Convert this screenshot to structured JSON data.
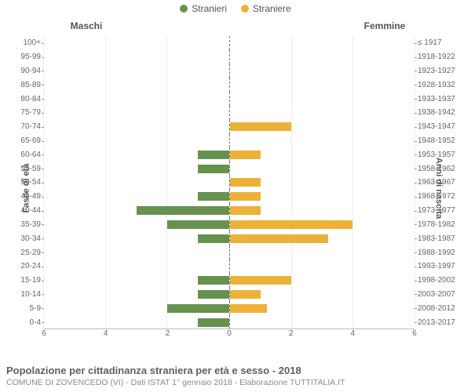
{
  "legend": {
    "male": {
      "label": "Stranieri",
      "color": "#67924e"
    },
    "female": {
      "label": "Straniere",
      "color": "#edb137"
    }
  },
  "headers": {
    "male": "Maschi",
    "female": "Femmine"
  },
  "axis_titles": {
    "left": "Fasce di età",
    "right": "Anni di nascita"
  },
  "x_max": 6,
  "x_ticks": [
    0,
    2,
    4,
    6
  ],
  "grid_color": "#eeeeee",
  "zero_line_color": "#777777",
  "bar_male_color": "#67924e",
  "bar_female_color": "#edb137",
  "rows": [
    {
      "age": "0-4",
      "birth": "2013-2017",
      "m": 1,
      "f": 0
    },
    {
      "age": "5-9",
      "birth": "2008-2012",
      "m": 2,
      "f": 1.2
    },
    {
      "age": "10-14",
      "birth": "2003-2007",
      "m": 1,
      "f": 1
    },
    {
      "age": "15-19",
      "birth": "1998-2002",
      "m": 1,
      "f": 2
    },
    {
      "age": "20-24",
      "birth": "1993-1997",
      "m": 0,
      "f": 0
    },
    {
      "age": "25-29",
      "birth": "1988-1992",
      "m": 0,
      "f": 0
    },
    {
      "age": "30-34",
      "birth": "1983-1987",
      "m": 1,
      "f": 3.2
    },
    {
      "age": "35-39",
      "birth": "1978-1982",
      "m": 2,
      "f": 4
    },
    {
      "age": "40-44",
      "birth": "1973-1977",
      "m": 3,
      "f": 1
    },
    {
      "age": "45-49",
      "birth": "1968-1972",
      "m": 1,
      "f": 1
    },
    {
      "age": "50-54",
      "birth": "1963-1967",
      "m": 0,
      "f": 1
    },
    {
      "age": "55-59",
      "birth": "1958-1962",
      "m": 1,
      "f": 0
    },
    {
      "age": "60-64",
      "birth": "1953-1957",
      "m": 1,
      "f": 1
    },
    {
      "age": "65-69",
      "birth": "1948-1952",
      "m": 0,
      "f": 0
    },
    {
      "age": "70-74",
      "birth": "1943-1947",
      "m": 0,
      "f": 2
    },
    {
      "age": "75-79",
      "birth": "1938-1942",
      "m": 0,
      "f": 0
    },
    {
      "age": "80-84",
      "birth": "1933-1937",
      "m": 0,
      "f": 0
    },
    {
      "age": "85-89",
      "birth": "1928-1932",
      "m": 0,
      "f": 0
    },
    {
      "age": "90-94",
      "birth": "1923-1927",
      "m": 0,
      "f": 0
    },
    {
      "age": "95-99",
      "birth": "1918-1922",
      "m": 0,
      "f": 0
    },
    {
      "age": "100+",
      "birth": "≤ 1917",
      "m": 0,
      "f": 0
    }
  ],
  "caption": {
    "title": "Popolazione per cittadinanza straniera per età e sesso - 2018",
    "sub": "COMUNE DI ZOVENCEDO (VI) - Dati ISTAT 1° gennaio 2018 - Elaborazione TUTTITALIA.IT"
  }
}
